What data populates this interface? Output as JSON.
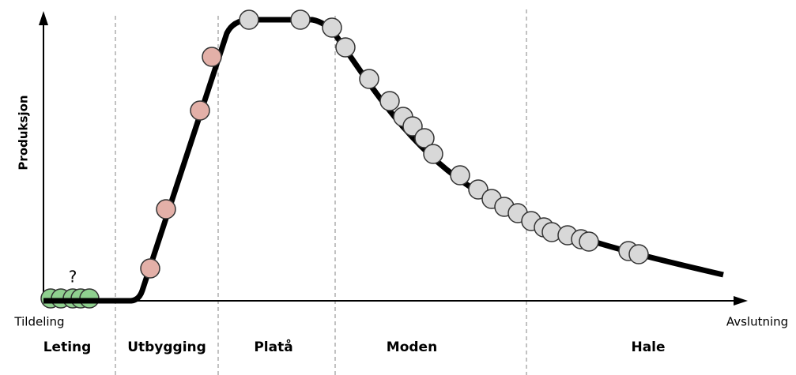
{
  "y_axis_label": "Produksjon",
  "question_mark": "?",
  "x_axis_start": "Tildeling",
  "x_axis_end": "Avslutning",
  "phases": [
    "Leting",
    "Utbygging",
    "Platå",
    "Moden",
    "Hale"
  ]
}
